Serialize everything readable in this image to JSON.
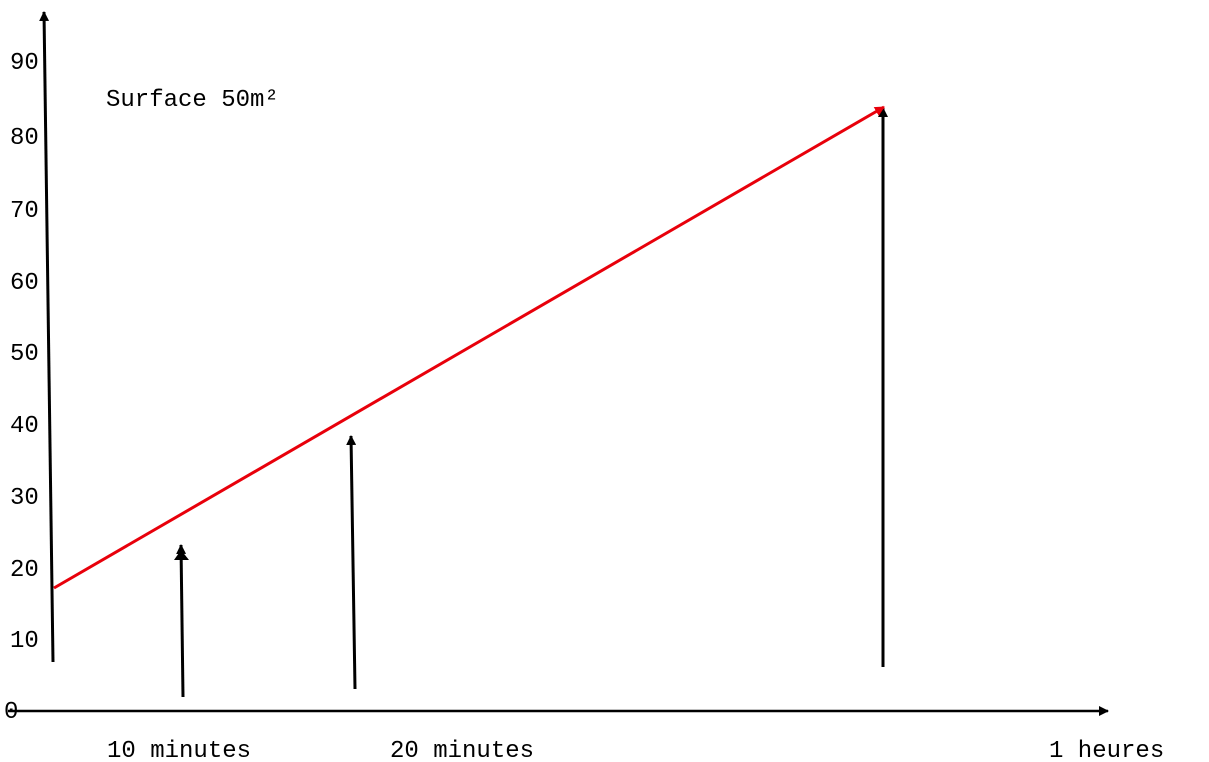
{
  "title": "Surface 50m²",
  "y_ticks": [
    "0",
    "10",
    "20",
    "30",
    "40",
    "50",
    "60",
    "70",
    "80",
    "90"
  ],
  "x_labels": [
    "10 minutes",
    "20 minutes",
    "1 heures"
  ],
  "colors": {
    "axes": "#000000",
    "trend": "#e8000b"
  }
}
